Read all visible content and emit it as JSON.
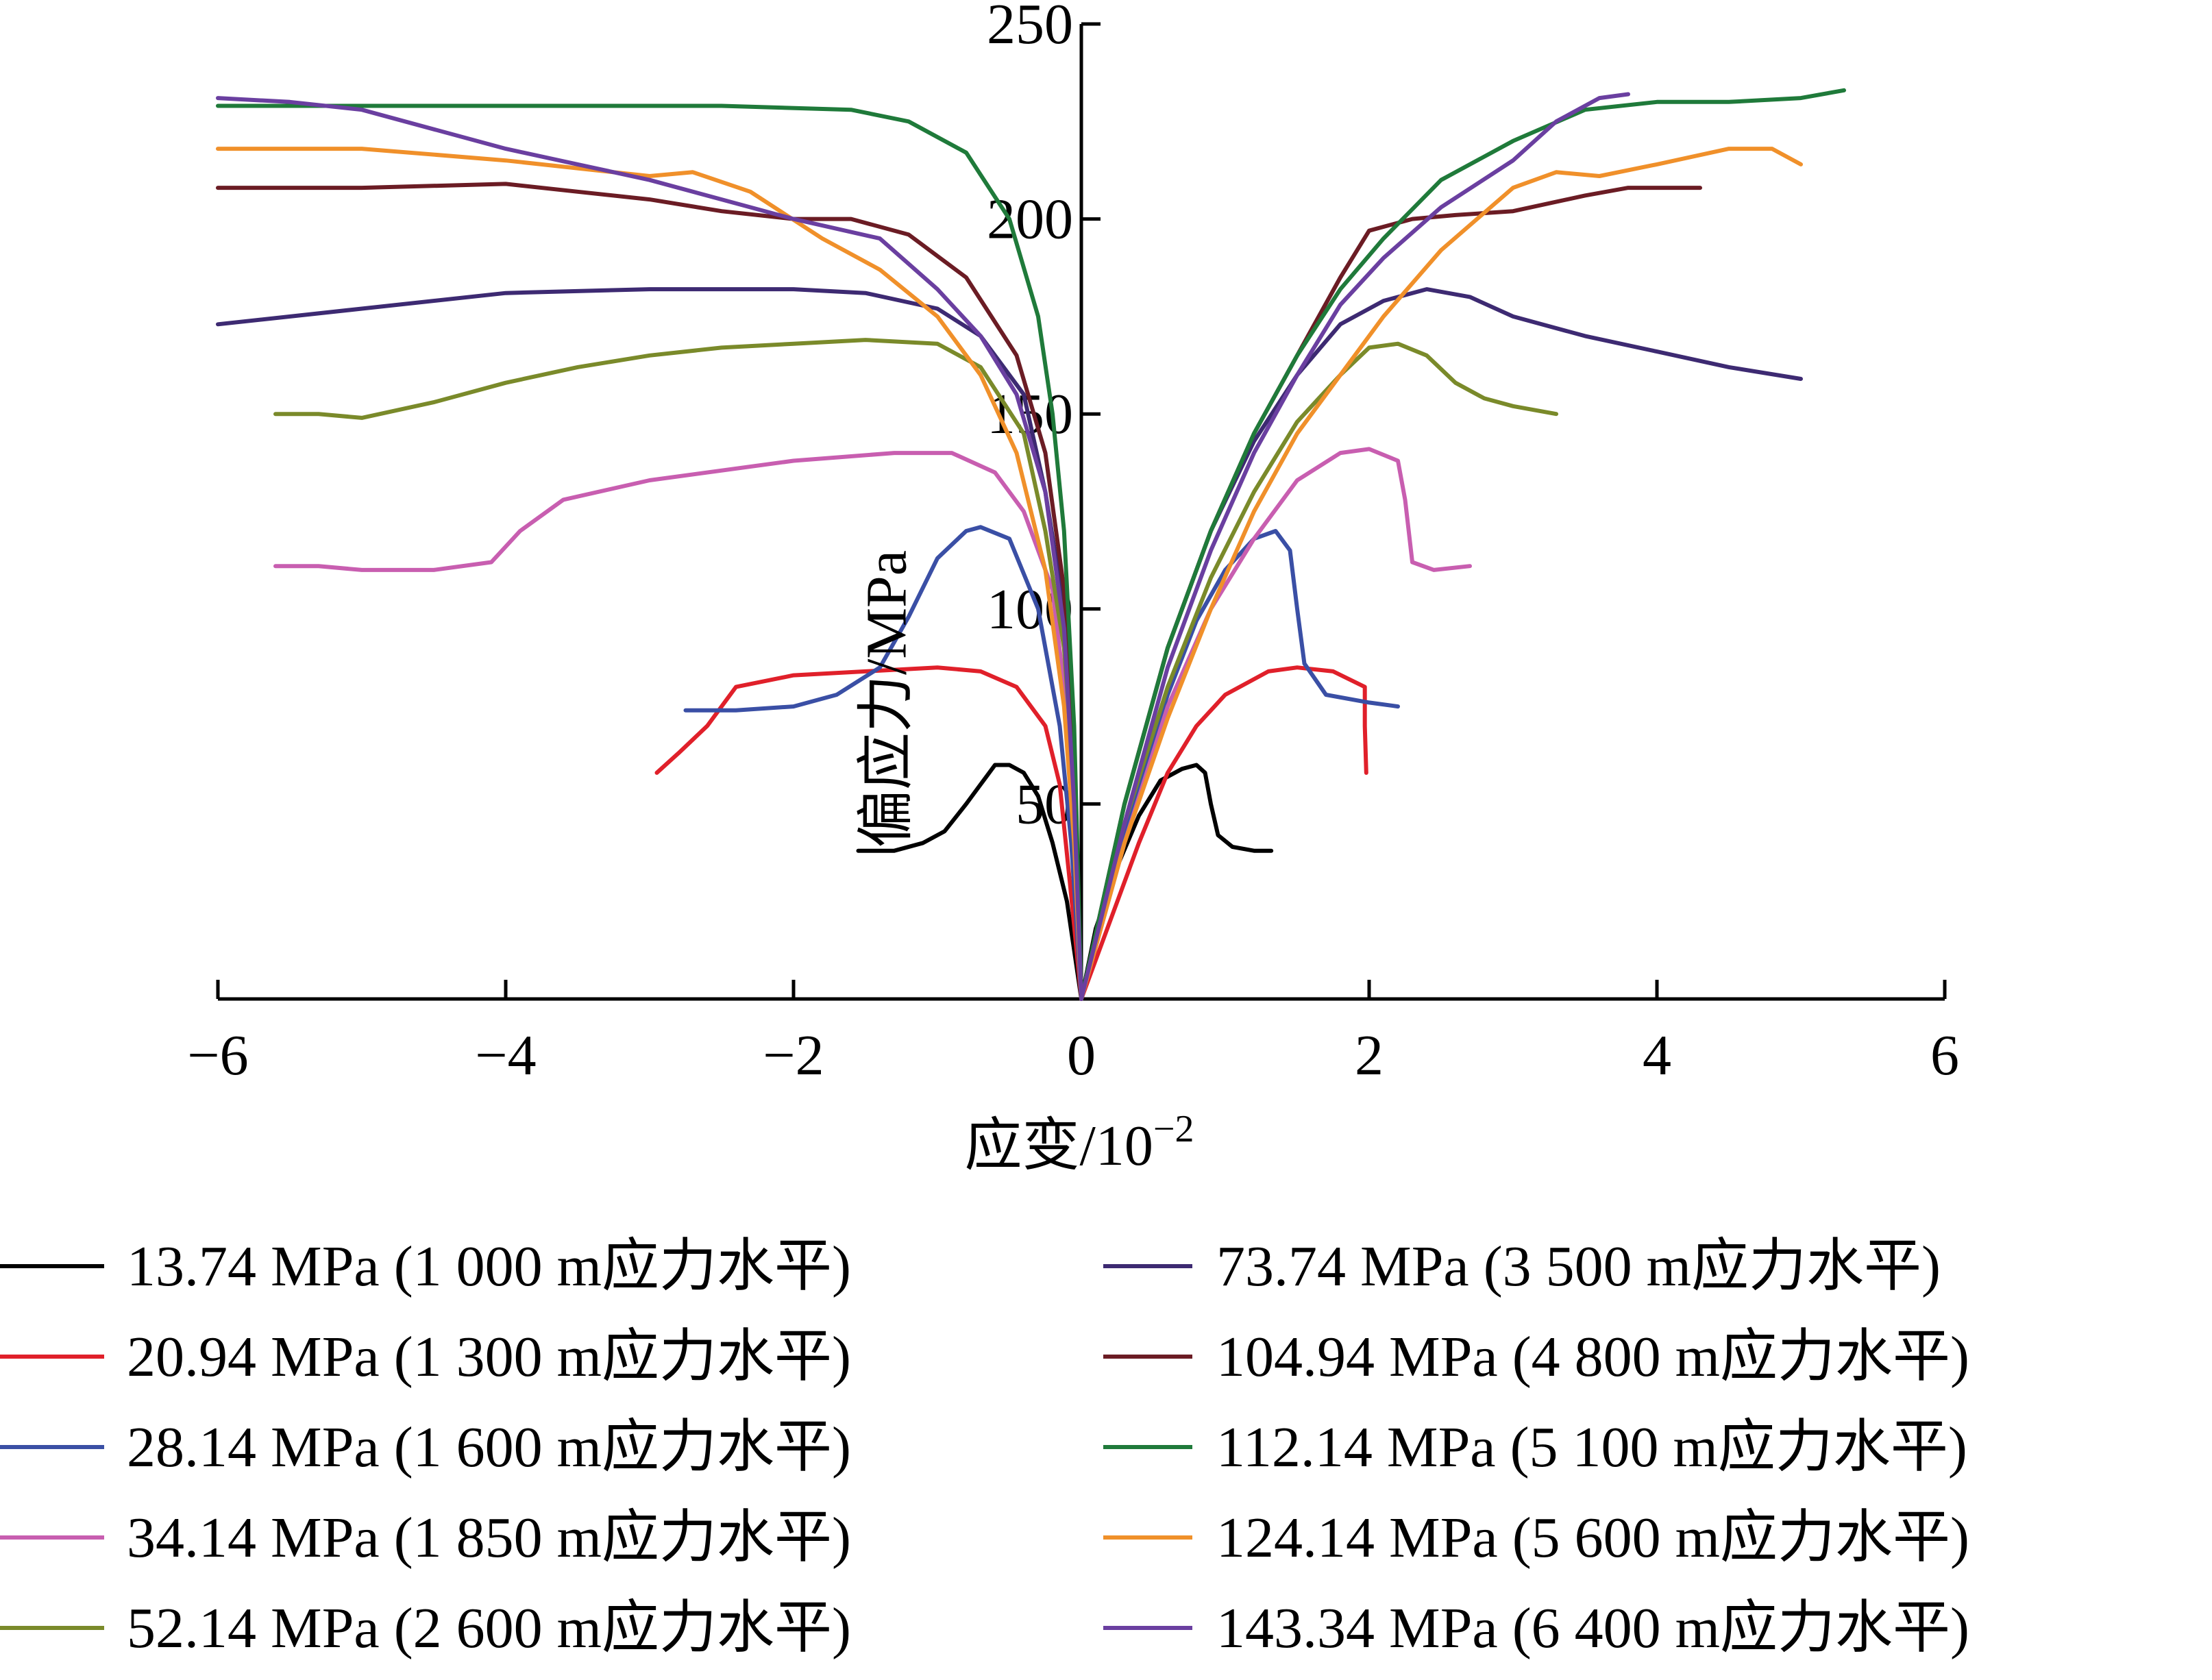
{
  "chart_data": {
    "type": "line",
    "xlabel": "应变/10",
    "xlabel_exponent": "−2",
    "ylabel": "偏应力/MPa",
    "xlim": [
      -6,
      6
    ],
    "ylim": [
      0,
      250
    ],
    "xticks": [
      -6,
      -4,
      -2,
      0,
      2,
      4,
      6
    ],
    "xtick_labels": [
      "−6",
      "−4",
      "−2",
      "0",
      "2",
      "4",
      "6"
    ],
    "yticks": [
      50,
      100,
      150,
      200,
      250
    ],
    "ytick_labels": [
      "50",
      "100",
      "150",
      "200",
      "250"
    ],
    "grid": false,
    "legend_position": "bottom",
    "series": [
      {
        "name": "13.74 MPa (1 000 m应力水平)",
        "color": "#000000",
        "left": [
          [
            0,
            0
          ],
          [
            -0.1,
            25
          ],
          [
            -0.2,
            40
          ],
          [
            -0.3,
            52
          ],
          [
            -0.4,
            58
          ],
          [
            -0.5,
            60
          ],
          [
            -0.6,
            60
          ],
          [
            -0.7,
            55
          ],
          [
            -0.8,
            50
          ],
          [
            -0.95,
            43
          ],
          [
            -1.1,
            40
          ],
          [
            -1.3,
            38
          ],
          [
            -1.55,
            38
          ]
        ],
        "right": [
          [
            0,
            0
          ],
          [
            0.1,
            18
          ],
          [
            0.25,
            34
          ],
          [
            0.4,
            47
          ],
          [
            0.55,
            56
          ],
          [
            0.7,
            59
          ],
          [
            0.8,
            60
          ],
          [
            0.86,
            58
          ],
          [
            0.9,
            50
          ],
          [
            0.95,
            42
          ],
          [
            1.05,
            39
          ],
          [
            1.2,
            38
          ],
          [
            1.32,
            38
          ]
        ]
      },
      {
        "name": "20.94 MPa (1 300 m应力水平)",
        "color": "#e0202a",
        "left": [
          [
            0,
            0
          ],
          [
            -0.08,
            30
          ],
          [
            -0.15,
            55
          ],
          [
            -0.25,
            70
          ],
          [
            -0.45,
            80
          ],
          [
            -0.7,
            84
          ],
          [
            -1.0,
            85
          ],
          [
            -1.5,
            84
          ],
          [
            -2.0,
            83
          ],
          [
            -2.4,
            80
          ],
          [
            -2.6,
            70
          ],
          [
            -2.8,
            63
          ],
          [
            -2.95,
            58
          ]
        ],
        "right": [
          [
            0,
            0
          ],
          [
            0.2,
            20
          ],
          [
            0.4,
            40
          ],
          [
            0.6,
            58
          ],
          [
            0.8,
            70
          ],
          [
            1.0,
            78
          ],
          [
            1.3,
            84
          ],
          [
            1.5,
            85
          ],
          [
            1.75,
            84
          ],
          [
            1.97,
            80
          ],
          [
            1.97,
            70
          ],
          [
            1.98,
            58
          ]
        ]
      },
      {
        "name": "28.14 MPa (1 600 m应力水平)",
        "color": "#3a4fa5",
        "left": [
          [
            0,
            0
          ],
          [
            -0.07,
            40
          ],
          [
            -0.15,
            70
          ],
          [
            -0.3,
            100
          ],
          [
            -0.5,
            118
          ],
          [
            -0.7,
            121
          ],
          [
            -0.8,
            120
          ],
          [
            -1.0,
            113
          ],
          [
            -1.2,
            98
          ],
          [
            -1.4,
            85
          ],
          [
            -1.7,
            78
          ],
          [
            -2.0,
            75
          ],
          [
            -2.4,
            74
          ],
          [
            -2.75,
            74
          ]
        ],
        "right": [
          [
            0,
            0
          ],
          [
            0.2,
            28
          ],
          [
            0.4,
            55
          ],
          [
            0.6,
            78
          ],
          [
            0.8,
            97
          ],
          [
            1.0,
            110
          ],
          [
            1.2,
            118
          ],
          [
            1.35,
            120
          ],
          [
            1.45,
            115
          ],
          [
            1.5,
            100
          ],
          [
            1.55,
            86
          ],
          [
            1.7,
            78
          ],
          [
            2.0,
            76
          ],
          [
            2.2,
            75
          ]
        ]
      },
      {
        "name": "34.14 MPa (1 850 m应力水平)",
        "color": "#c85eb0",
        "left": [
          [
            0,
            0
          ],
          [
            -0.06,
            50
          ],
          [
            -0.12,
            80
          ],
          [
            -0.2,
            105
          ],
          [
            -0.4,
            125
          ],
          [
            -0.6,
            135
          ],
          [
            -0.9,
            140
          ],
          [
            -1.3,
            140
          ],
          [
            -2.0,
            138
          ],
          [
            -3.0,
            133
          ],
          [
            -3.6,
            128
          ],
          [
            -3.9,
            120
          ],
          [
            -4.1,
            112
          ],
          [
            -4.5,
            110
          ],
          [
            -5.0,
            110
          ],
          [
            -5.3,
            111
          ],
          [
            -5.6,
            111
          ]
        ],
        "right": [
          [
            0,
            0
          ],
          [
            0.3,
            40
          ],
          [
            0.6,
            75
          ],
          [
            0.9,
            100
          ],
          [
            1.2,
            118
          ],
          [
            1.5,
            133
          ],
          [
            1.8,
            140
          ],
          [
            2.0,
            141
          ],
          [
            2.2,
            138
          ],
          [
            2.25,
            128
          ],
          [
            2.3,
            112
          ],
          [
            2.45,
            110
          ],
          [
            2.7,
            111
          ]
        ]
      },
      {
        "name": "52.14 MPa (2 600 m应力水平)",
        "color": "#7a8a2a",
        "left": [
          [
            0,
            0
          ],
          [
            -0.05,
            55
          ],
          [
            -0.12,
            90
          ],
          [
            -0.25,
            120
          ],
          [
            -0.4,
            145
          ],
          [
            -0.7,
            162
          ],
          [
            -1.0,
            168
          ],
          [
            -1.5,
            169
          ],
          [
            -2.0,
            168
          ],
          [
            -2.5,
            167
          ],
          [
            -3.0,
            165
          ],
          [
            -3.5,
            162
          ],
          [
            -4.0,
            158
          ],
          [
            -4.5,
            153
          ],
          [
            -5.0,
            149
          ],
          [
            -5.3,
            150
          ],
          [
            -5.6,
            150
          ]
        ],
        "right": [
          [
            0,
            0
          ],
          [
            0.3,
            45
          ],
          [
            0.6,
            80
          ],
          [
            0.9,
            108
          ],
          [
            1.2,
            130
          ],
          [
            1.5,
            148
          ],
          [
            1.8,
            160
          ],
          [
            2.0,
            167
          ],
          [
            2.2,
            168
          ],
          [
            2.4,
            165
          ],
          [
            2.6,
            158
          ],
          [
            2.8,
            154
          ],
          [
            3.0,
            152
          ],
          [
            3.3,
            150
          ]
        ]
      },
      {
        "name": "73.74 MPa (3 500 m应力水平)",
        "color": "#3d2a72",
        "left": [
          [
            0,
            0
          ],
          [
            -0.05,
            60
          ],
          [
            -0.12,
            100
          ],
          [
            -0.25,
            130
          ],
          [
            -0.4,
            155
          ],
          [
            -0.7,
            170
          ],
          [
            -1.0,
            177
          ],
          [
            -1.5,
            181
          ],
          [
            -2.0,
            182
          ],
          [
            -3.0,
            182
          ],
          [
            -4.0,
            181
          ],
          [
            -5.0,
            177
          ],
          [
            -6.0,
            173
          ]
        ],
        "right": [
          [
            0,
            0
          ],
          [
            0.3,
            50
          ],
          [
            0.6,
            90
          ],
          [
            0.9,
            120
          ],
          [
            1.2,
            143
          ],
          [
            1.5,
            160
          ],
          [
            1.8,
            173
          ],
          [
            2.1,
            179
          ],
          [
            2.4,
            182
          ],
          [
            2.7,
            180
          ],
          [
            3.0,
            175
          ],
          [
            3.5,
            170
          ],
          [
            4.0,
            166
          ],
          [
            4.5,
            162
          ],
          [
            5.0,
            159
          ]
        ]
      },
      {
        "name": "104.94 MPa (4 800 m应力水平)",
        "color": "#6b1c24",
        "left": [
          [
            0,
            0
          ],
          [
            -0.05,
            60
          ],
          [
            -0.12,
            105
          ],
          [
            -0.25,
            140
          ],
          [
            -0.45,
            165
          ],
          [
            -0.8,
            185
          ],
          [
            -1.2,
            196
          ],
          [
            -1.6,
            200
          ],
          [
            -2.0,
            200
          ],
          [
            -2.5,
            202
          ],
          [
            -3.0,
            205
          ],
          [
            -3.5,
            207
          ],
          [
            -4.0,
            209
          ],
          [
            -5.0,
            208
          ],
          [
            -6.0,
            208
          ]
        ],
        "right": [
          [
            0,
            0
          ],
          [
            0.3,
            50
          ],
          [
            0.6,
            90
          ],
          [
            0.9,
            120
          ],
          [
            1.2,
            145
          ],
          [
            1.5,
            165
          ],
          [
            1.8,
            185
          ],
          [
            2.0,
            197
          ],
          [
            2.3,
            200
          ],
          [
            2.6,
            201
          ],
          [
            3.0,
            202
          ],
          [
            3.5,
            206
          ],
          [
            3.8,
            208
          ],
          [
            4.3,
            208
          ]
        ]
      },
      {
        "name": "112.14 MPa (5 100 m应力水平)",
        "color": "#1f7a3a",
        "left": [
          [
            0,
            0
          ],
          [
            -0.05,
            70
          ],
          [
            -0.12,
            120
          ],
          [
            -0.2,
            150
          ],
          [
            -0.3,
            175
          ],
          [
            -0.5,
            200
          ],
          [
            -0.8,
            217
          ],
          [
            -1.2,
            225
          ],
          [
            -1.6,
            228
          ],
          [
            -2.5,
            229
          ],
          [
            -3.5,
            229
          ],
          [
            -4.5,
            229
          ],
          [
            -6.0,
            229
          ]
        ],
        "right": [
          [
            0,
            0
          ],
          [
            0.3,
            50
          ],
          [
            0.6,
            90
          ],
          [
            0.9,
            120
          ],
          [
            1.2,
            145
          ],
          [
            1.5,
            165
          ],
          [
            1.8,
            182
          ],
          [
            2.1,
            195
          ],
          [
            2.5,
            210
          ],
          [
            3.0,
            220
          ],
          [
            3.5,
            228
          ],
          [
            4.0,
            230
          ],
          [
            4.5,
            230
          ],
          [
            5.0,
            231
          ],
          [
            5.3,
            233
          ]
        ]
      },
      {
        "name": "124.14 MPa (5 600 m应力水平)",
        "color": "#f0902a",
        "left": [
          [
            0,
            0
          ],
          [
            -0.05,
            40
          ],
          [
            -0.12,
            75
          ],
          [
            -0.25,
            110
          ],
          [
            -0.45,
            140
          ],
          [
            -0.7,
            160
          ],
          [
            -1.0,
            175
          ],
          [
            -1.4,
            187
          ],
          [
            -1.8,
            195
          ],
          [
            -2.3,
            207
          ],
          [
            -2.7,
            212
          ],
          [
            -3.0,
            211
          ],
          [
            -3.5,
            213
          ],
          [
            -4.0,
            215
          ],
          [
            -5.0,
            218
          ],
          [
            -6.0,
            218
          ]
        ],
        "right": [
          [
            0,
            0
          ],
          [
            0.3,
            40
          ],
          [
            0.6,
            72
          ],
          [
            0.9,
            100
          ],
          [
            1.2,
            125
          ],
          [
            1.5,
            145
          ],
          [
            1.8,
            160
          ],
          [
            2.1,
            175
          ],
          [
            2.5,
            192
          ],
          [
            3.0,
            208
          ],
          [
            3.3,
            212
          ],
          [
            3.6,
            211
          ],
          [
            4.0,
            214
          ],
          [
            4.5,
            218
          ],
          [
            4.8,
            218
          ],
          [
            5.0,
            214
          ]
        ]
      },
      {
        "name": "143.34 MPa (6 400 m应力水平)",
        "color": "#6a3fa0",
        "left": [
          [
            0,
            0
          ],
          [
            -0.05,
            50
          ],
          [
            -0.12,
            95
          ],
          [
            -0.25,
            130
          ],
          [
            -0.45,
            155
          ],
          [
            -0.7,
            170
          ],
          [
            -1.0,
            182
          ],
          [
            -1.4,
            195
          ],
          [
            -2.0,
            200
          ],
          [
            -2.5,
            205
          ],
          [
            -3.0,
            210
          ],
          [
            -3.5,
            214
          ],
          [
            -4.0,
            218
          ],
          [
            -5.0,
            228
          ],
          [
            -5.5,
            230
          ],
          [
            -6.0,
            231
          ]
        ],
        "right": [
          [
            0,
            0
          ],
          [
            0.3,
            45
          ],
          [
            0.6,
            85
          ],
          [
            0.9,
            115
          ],
          [
            1.2,
            140
          ],
          [
            1.5,
            160
          ],
          [
            1.8,
            178
          ],
          [
            2.1,
            190
          ],
          [
            2.5,
            203
          ],
          [
            3.0,
            215
          ],
          [
            3.3,
            225
          ],
          [
            3.6,
            231
          ],
          [
            3.8,
            232
          ]
        ]
      }
    ]
  }
}
